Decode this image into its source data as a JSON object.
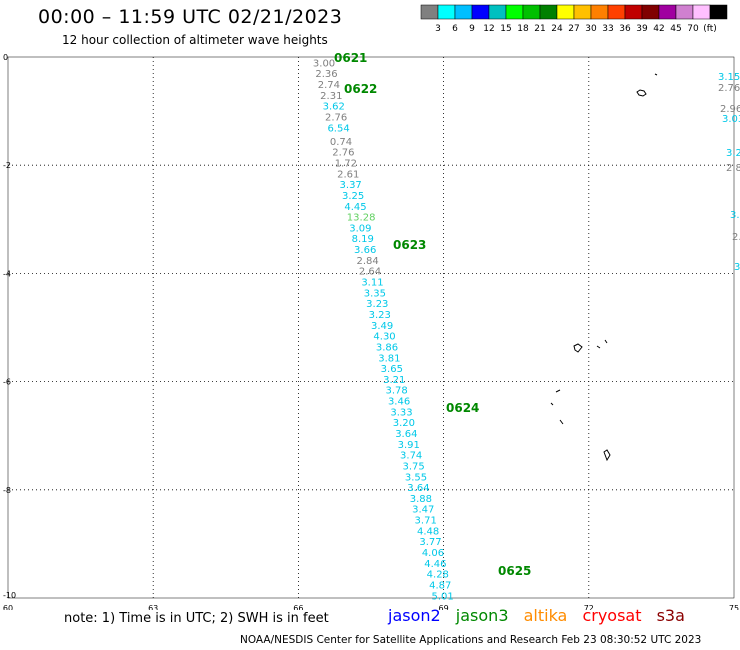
{
  "header": {
    "title": "00:00 – 11:59 UTC 02/21/2023",
    "subtitle": "12 hour collection of altimeter wave heights"
  },
  "colorbar": {
    "colors": [
      "#808080",
      "#00ffff",
      "#00bfff",
      "#0000ff",
      "#00c0c0",
      "#00ff00",
      "#00c000",
      "#008000",
      "#ffff00",
      "#ffc000",
      "#ff8000",
      "#ff4000",
      "#c00000",
      "#800000",
      "#a000a0",
      "#d080d0",
      "#ffc0ff",
      "#000000"
    ],
    "labels": [
      "3",
      "6",
      "9",
      "12",
      "15",
      "18",
      "21",
      "24",
      "27",
      "30",
      "33",
      "36",
      "39",
      "42",
      "45",
      "70",
      "(ft)"
    ]
  },
  "map": {
    "x_ticks": [
      "60",
      "63",
      "66",
      "69",
      "72",
      "75"
    ],
    "y_ticks": [
      "0",
      "-2",
      "-4",
      "-6",
      "-8",
      "-10"
    ],
    "pass_labels": [
      "0621",
      "0622",
      "0623",
      "0624",
      "0625"
    ],
    "observations": [
      {
        "lon": 66.3,
        "lat": -0.1,
        "value": "3.00",
        "color": "#808080"
      },
      {
        "lon": 66.35,
        "lat": -0.3,
        "value": "2.36",
        "color": "#808080"
      },
      {
        "lon": 66.4,
        "lat": -0.5,
        "value": "2.74",
        "color": "#808080"
      },
      {
        "lon": 66.45,
        "lat": -0.7,
        "value": "2.31",
        "color": "#808080"
      },
      {
        "lon": 66.5,
        "lat": -0.9,
        "value": "3.62",
        "color": "#00c8e8"
      },
      {
        "lon": 66.55,
        "lat": -1.1,
        "value": "2.76",
        "color": "#808080"
      },
      {
        "lon": 66.6,
        "lat": -1.3,
        "value": "6.54",
        "color": "#00c8e8"
      },
      {
        "lon": 66.65,
        "lat": -1.55,
        "value": "0.74",
        "color": "#808080"
      },
      {
        "lon": 66.7,
        "lat": -1.75,
        "value": "2.76",
        "color": "#808080"
      },
      {
        "lon": 66.75,
        "lat": -1.95,
        "value": "1.72",
        "color": "#808080"
      },
      {
        "lon": 66.8,
        "lat": -2.15,
        "value": "2.61",
        "color": "#808080"
      },
      {
        "lon": 66.85,
        "lat": -2.35,
        "value": "3.37",
        "color": "#00c8e8"
      },
      {
        "lon": 66.9,
        "lat": -2.55,
        "value": "3.25",
        "color": "#00c8e8"
      },
      {
        "lon": 66.95,
        "lat": -2.75,
        "value": "4.45",
        "color": "#00c8e8"
      },
      {
        "lon": 67.0,
        "lat": -2.95,
        "value": "13.28",
        "color": "#60d060"
      },
      {
        "lon": 67.05,
        "lat": -3.15,
        "value": "3.09",
        "color": "#00c8e8"
      },
      {
        "lon": 67.1,
        "lat": -3.35,
        "value": "8.19",
        "color": "#00c8e8"
      },
      {
        "lon": 67.15,
        "lat": -3.55,
        "value": "3.66",
        "color": "#00c8e8"
      },
      {
        "lon": 67.2,
        "lat": -3.75,
        "value": "2.84",
        "color": "#808080"
      },
      {
        "lon": 67.25,
        "lat": -3.95,
        "value": "2.64",
        "color": "#808080"
      },
      {
        "lon": 67.3,
        "lat": -4.15,
        "value": "3.11",
        "color": "#00c8e8"
      },
      {
        "lon": 67.35,
        "lat": -4.35,
        "value": "3.35",
        "color": "#00c8e8"
      },
      {
        "lon": 67.4,
        "lat": -4.55,
        "value": "3.23",
        "color": "#00c8e8"
      },
      {
        "lon": 67.45,
        "lat": -4.75,
        "value": "3.23",
        "color": "#00c8e8"
      },
      {
        "lon": 67.5,
        "lat": -4.95,
        "value": "3.49",
        "color": "#00c8e8"
      },
      {
        "lon": 67.55,
        "lat": -5.15,
        "value": "4.30",
        "color": "#00c8e8"
      },
      {
        "lon": 67.6,
        "lat": -5.35,
        "value": "3.86",
        "color": "#00c8e8"
      },
      {
        "lon": 67.65,
        "lat": -5.55,
        "value": "3.81",
        "color": "#00c8e8"
      },
      {
        "lon": 67.7,
        "lat": -5.75,
        "value": "3.65",
        "color": "#00c8e8"
      },
      {
        "lon": 67.75,
        "lat": -5.95,
        "value": "3.21",
        "color": "#00c8e8"
      },
      {
        "lon": 67.8,
        "lat": -6.15,
        "value": "3.78",
        "color": "#00c8e8"
      },
      {
        "lon": 67.85,
        "lat": -6.35,
        "value": "3.46",
        "color": "#00c8e8"
      },
      {
        "lon": 67.9,
        "lat": -6.55,
        "value": "3.33",
        "color": "#00c8e8"
      },
      {
        "lon": 67.95,
        "lat": -6.75,
        "value": "3.20",
        "color": "#00c8e8"
      },
      {
        "lon": 68.0,
        "lat": -6.95,
        "value": "3.64",
        "color": "#00c8e8"
      },
      {
        "lon": 68.05,
        "lat": -7.15,
        "value": "3.91",
        "color": "#00c8e8"
      },
      {
        "lon": 68.1,
        "lat": -7.35,
        "value": "3.74",
        "color": "#00c8e8"
      },
      {
        "lon": 68.15,
        "lat": -7.55,
        "value": "3.75",
        "color": "#00c8e8"
      },
      {
        "lon": 68.2,
        "lat": -7.75,
        "value": "3.55",
        "color": "#00c8e8"
      },
      {
        "lon": 68.25,
        "lat": -7.95,
        "value": "3.64",
        "color": "#00c8e8"
      },
      {
        "lon": 68.3,
        "lat": -8.15,
        "value": "3.88",
        "color": "#00c8e8"
      },
      {
        "lon": 68.35,
        "lat": -8.35,
        "value": "3.47",
        "color": "#00c8e8"
      },
      {
        "lon": 68.4,
        "lat": -8.55,
        "value": "3.71",
        "color": "#00c8e8"
      },
      {
        "lon": 68.45,
        "lat": -8.75,
        "value": "4.48",
        "color": "#00c8e8"
      },
      {
        "lon": 68.5,
        "lat": -8.95,
        "value": "3.77",
        "color": "#00c8e8"
      },
      {
        "lon": 68.55,
        "lat": -9.15,
        "value": "4.06",
        "color": "#00c8e8"
      },
      {
        "lon": 68.6,
        "lat": -9.35,
        "value": "4.46",
        "color": "#00c8e8"
      },
      {
        "lon": 68.65,
        "lat": -9.55,
        "value": "4.28",
        "color": "#00c8e8"
      },
      {
        "lon": 68.7,
        "lat": -9.75,
        "value": "4.87",
        "color": "#00c8e8"
      },
      {
        "lon": 68.75,
        "lat": -9.95,
        "value": "5.01",
        "color": "#00c8e8"
      }
    ]
  },
  "note": "note: 1) Time is in UTC; 2) SWH is in feet",
  "legend": {
    "jason2": "jason2",
    "jason2_color": "#0000ff",
    "jason3": "jason3",
    "jason3_color": "#008800",
    "altika": "altika",
    "altika_color": "#ff8c00",
    "cryosat": "cryosat",
    "cryosat_color": "#ff0000",
    "s3a": "s3a",
    "s3a_color": "#8b0000"
  },
  "footer": "NOAA/NESDIS Center for Satellite Applications and Research    Feb 23 08:30:52 UTC 2023"
}
